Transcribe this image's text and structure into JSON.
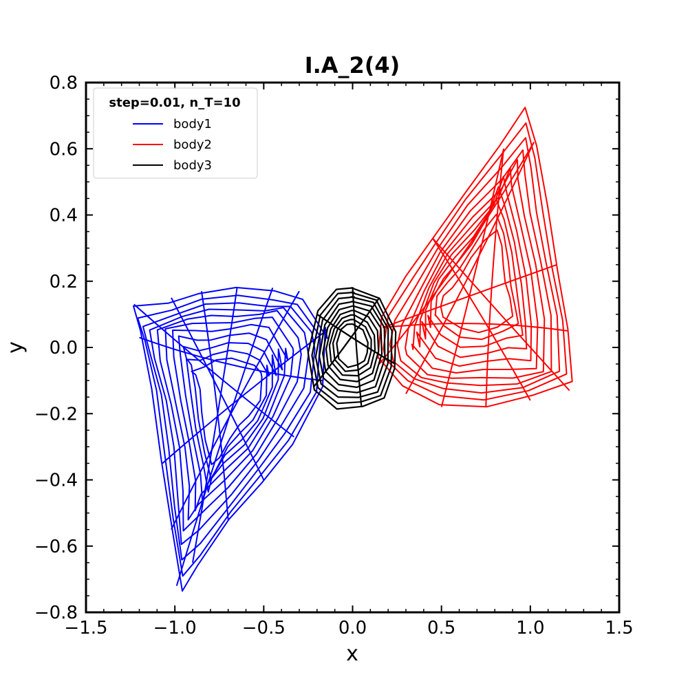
{
  "chart_data": {
    "type": "line",
    "title": "I.A_2(4)",
    "xlabel": "x",
    "ylabel": "y",
    "xlim": [
      -1.5,
      1.5
    ],
    "ylim": [
      -0.8,
      0.8
    ],
    "xticks": [
      -1.5,
      -1.0,
      -0.5,
      0.0,
      0.5,
      1.0,
      1.5
    ],
    "xtick_labels": [
      "−1.5",
      "−1.0",
      "−0.5",
      "0.0",
      "0.5",
      "1.0",
      "1.5"
    ],
    "yticks": [
      -0.8,
      -0.6,
      -0.4,
      -0.2,
      0.0,
      0.2,
      0.4,
      0.6,
      0.8
    ],
    "ytick_labels": [
      "−0.8",
      "−0.6",
      "−0.4",
      "−0.2",
      "0.0",
      "0.2",
      "0.4",
      "0.6",
      "0.8"
    ],
    "grid": false,
    "legend": {
      "title": "step=0.01, n_T=10",
      "placement": "upper-left",
      "entries": [
        "body1",
        "body2",
        "body3"
      ]
    },
    "series": [
      {
        "name": "body1",
        "color": "#0000ff",
        "outline": [
          [
            -0.15,
            0.05
          ],
          [
            -0.3,
            0.17
          ],
          [
            -0.45,
            0.18
          ],
          [
            -0.65,
            0.18
          ],
          [
            -0.85,
            0.17
          ],
          [
            -1.02,
            0.15
          ],
          [
            -1.23,
            0.13
          ],
          [
            -1.2,
            0.03
          ],
          [
            -1.13,
            -0.15
          ],
          [
            -1.07,
            -0.35
          ],
          [
            -1.02,
            -0.55
          ],
          [
            -0.99,
            -0.72
          ],
          [
            -0.9,
            -0.65
          ],
          [
            -0.7,
            -0.52
          ],
          [
            -0.5,
            -0.4
          ],
          [
            -0.33,
            -0.27
          ],
          [
            -0.17,
            -0.1
          ],
          [
            -0.15,
            0.05
          ]
        ]
      },
      {
        "name": "body2",
        "color": "#ff0000",
        "outline": [
          [
            0.15,
            -0.05
          ],
          [
            0.3,
            -0.14
          ],
          [
            0.5,
            -0.18
          ],
          [
            0.75,
            -0.18
          ],
          [
            1.0,
            -0.16
          ],
          [
            1.22,
            -0.13
          ],
          [
            1.21,
            0.05
          ],
          [
            1.15,
            0.25
          ],
          [
            1.08,
            0.45
          ],
          [
            1.02,
            0.62
          ],
          [
            0.98,
            0.72
          ],
          [
            0.85,
            0.6
          ],
          [
            0.65,
            0.47
          ],
          [
            0.45,
            0.33
          ],
          [
            0.3,
            0.2
          ],
          [
            0.17,
            0.06
          ],
          [
            0.15,
            -0.05
          ]
        ]
      },
      {
        "name": "body3",
        "color": "#000000",
        "outline": [
          [
            0.0,
            0.18
          ],
          [
            0.15,
            0.15
          ],
          [
            0.24,
            0.06
          ],
          [
            0.24,
            -0.05
          ],
          [
            0.18,
            -0.15
          ],
          [
            0.05,
            -0.18
          ],
          [
            -0.1,
            -0.18
          ],
          [
            -0.22,
            -0.12
          ],
          [
            -0.25,
            -0.02
          ],
          [
            -0.2,
            0.1
          ],
          [
            -0.1,
            0.17
          ],
          [
            0.0,
            0.18
          ]
        ]
      }
    ]
  }
}
